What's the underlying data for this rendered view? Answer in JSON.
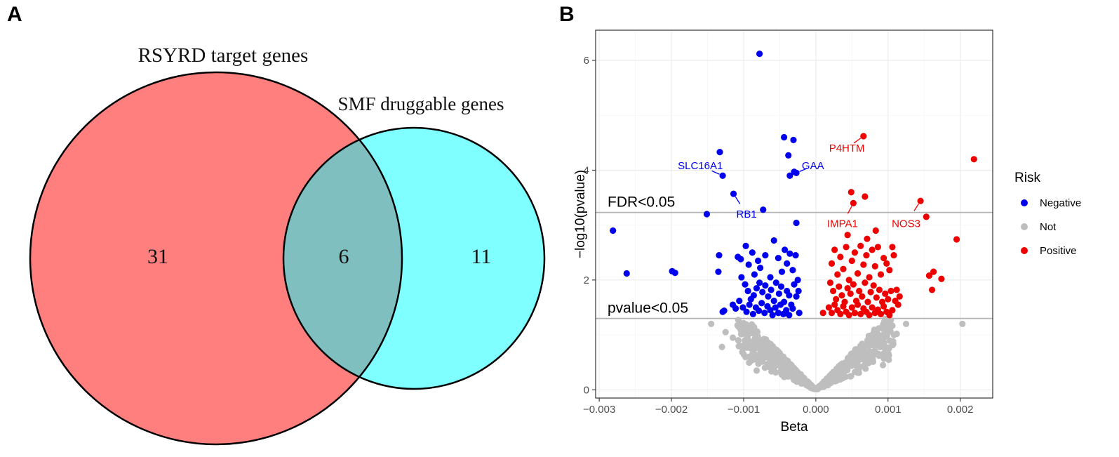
{
  "panels": {
    "a": "A",
    "b": "B"
  },
  "venn": {
    "set1_label": "RSYRD target genes",
    "set2_label": "SMF druggable genes",
    "set1_only": "31",
    "intersection": "6",
    "set2_only": "11",
    "colors": {
      "set1": "#ff7f7f",
      "set2": "#7fffff",
      "overlap": "#7fbfbf"
    }
  },
  "chart_data": {
    "type": "scatter",
    "title": "",
    "xlabel": "Beta",
    "ylabel": "−log10(pvalue)",
    "xlim": [
      -0.00305,
      0.00245
    ],
    "ylim": [
      -0.15,
      6.55
    ],
    "xticks": [
      -0.003,
      -0.002,
      -0.001,
      0.0,
      0.001,
      0.002
    ],
    "xtick_labels": [
      "−0.003",
      "−0.002",
      "−0.001",
      "0.000",
      "0.001",
      "0.002"
    ],
    "yticks": [
      0,
      2,
      4,
      6
    ],
    "ytick_labels": [
      "0",
      "2",
      "4",
      "6"
    ],
    "thresholds": [
      {
        "name": "FDR",
        "label": "FDR<0.05",
        "y": 3.23
      },
      {
        "name": "pvalue",
        "label": "pvalue<0.05",
        "y": 1.3
      }
    ],
    "legend": {
      "title": "Risk",
      "position": "right",
      "entries": [
        {
          "label": "Negative",
          "color": "#0000ee"
        },
        {
          "label": "Not",
          "color": "#bebebe"
        },
        {
          "label": "Positive",
          "color": "#ee0000"
        }
      ]
    },
    "series": [
      {
        "name": "Negative",
        "color": "#0000ee",
        "points": [
          [
            -0.00078,
            6.12
          ],
          [
            -0.00044,
            4.6
          ],
          [
            -0.00031,
            4.55
          ],
          [
            -0.00038,
            4.27
          ],
          [
            -0.00133,
            4.33
          ],
          [
            -0.00129,
            3.9
          ],
          [
            -0.00027,
            3.95
          ],
          [
            -0.00036,
            3.9
          ],
          [
            -0.0003,
            3.97
          ],
          [
            -0.00114,
            3.57
          ],
          [
            -0.00073,
            3.28
          ],
          [
            -0.00151,
            3.2
          ],
          [
            -0.00027,
            3.04
          ],
          [
            -0.00281,
            2.9
          ],
          [
            -0.00262,
            2.12
          ],
          [
            -0.00199,
            2.16
          ],
          [
            -0.00195,
            2.13
          ],
          [
            -0.00134,
            2.45
          ],
          [
            -0.00135,
            2.15
          ],
          [
            -0.00108,
            2.42
          ],
          [
            -0.00104,
            2.38
          ],
          [
            -0.00097,
            2.62
          ],
          [
            -0.00093,
            2.28
          ],
          [
            -0.00088,
            2.5
          ],
          [
            -0.00085,
            2.1
          ],
          [
            -0.0008,
            2.35
          ],
          [
            -0.00077,
            2.22
          ],
          [
            -0.0007,
            2.45
          ],
          [
            -0.00063,
            2.05
          ],
          [
            -0.00058,
            2.72
          ],
          [
            -0.00052,
            2.4
          ],
          [
            -0.00047,
            2.15
          ],
          [
            -0.00043,
            2.55
          ],
          [
            -0.0004,
            2.3
          ],
          [
            -0.00036,
            2.48
          ],
          [
            -0.00032,
            2.18
          ],
          [
            -0.00028,
            2.45
          ],
          [
            -0.00025,
            2.0
          ],
          [
            -0.00103,
            2.05
          ],
          [
            -0.00098,
            1.92
          ],
          [
            -0.00094,
            1.8
          ],
          [
            -0.0009,
            1.65
          ],
          [
            -0.00086,
            1.72
          ],
          [
            -0.00082,
            1.85
          ],
          [
            -0.00078,
            1.95
          ],
          [
            -0.00074,
            1.78
          ],
          [
            -0.0007,
            1.9
          ],
          [
            -0.00066,
            1.7
          ],
          [
            -0.00062,
            1.82
          ],
          [
            -0.00058,
            1.62
          ],
          [
            -0.00055,
            1.95
          ],
          [
            -0.00051,
            1.75
          ],
          [
            -0.00048,
            1.88
          ],
          [
            -0.00044,
            1.6
          ],
          [
            -0.0004,
            1.8
          ],
          [
            -0.00037,
            1.72
          ],
          [
            -0.00034,
            1.55
          ],
          [
            -0.0003,
            1.92
          ],
          [
            -0.00027,
            1.7
          ],
          [
            -0.00024,
            1.8
          ],
          [
            -0.00115,
            1.55
          ],
          [
            -0.00111,
            1.48
          ],
          [
            -0.00106,
            1.62
          ],
          [
            -0.00101,
            1.5
          ],
          [
            -0.00096,
            1.42
          ],
          [
            -0.00092,
            1.55
          ],
          [
            -0.00087,
            1.38
          ],
          [
            -0.00083,
            1.5
          ],
          [
            -0.00079,
            1.44
          ],
          [
            -0.00075,
            1.58
          ],
          [
            -0.00071,
            1.4
          ],
          [
            -0.00067,
            1.52
          ],
          [
            -0.00063,
            1.45
          ],
          [
            -0.0006,
            1.36
          ],
          [
            -0.00056,
            1.5
          ],
          [
            -0.00052,
            1.4
          ],
          [
            -0.00049,
            1.55
          ],
          [
            -0.00045,
            1.38
          ],
          [
            -0.00041,
            1.45
          ],
          [
            -0.00037,
            1.36
          ],
          [
            -0.00032,
            1.48
          ],
          [
            -0.00129,
            1.42
          ],
          [
            -0.00127,
            1.44
          ],
          [
            -0.00023,
            1.4
          ]
        ]
      },
      {
        "name": "Positive",
        "color": "#ee0000",
        "points": [
          [
            0.00066,
            4.62
          ],
          [
            0.00219,
            4.2
          ],
          [
            0.00049,
            3.6
          ],
          [
            0.00068,
            3.52
          ],
          [
            0.00052,
            3.4
          ],
          [
            0.00145,
            3.44
          ],
          [
            0.00153,
            3.15
          ],
          [
            0.00083,
            2.9
          ],
          [
            0.00044,
            2.82
          ],
          [
            0.00071,
            2.75
          ],
          [
            0.00195,
            2.74
          ],
          [
            0.00106,
            2.6
          ],
          [
            0.00163,
            2.15
          ],
          [
            0.00174,
            2.02
          ],
          [
            0.00157,
            2.08
          ],
          [
            0.00161,
            1.82
          ],
          [
            0.00022,
            2.3
          ],
          [
            0.00026,
            2.55
          ],
          [
            0.0003,
            2.1
          ],
          [
            0.00034,
            2.42
          ],
          [
            0.00038,
            2.2
          ],
          [
            0.00042,
            2.6
          ],
          [
            0.00046,
            2.0
          ],
          [
            0.0005,
            2.35
          ],
          [
            0.00054,
            2.5
          ],
          [
            0.00058,
            2.12
          ],
          [
            0.00062,
            2.62
          ],
          [
            0.00066,
            2.28
          ],
          [
            0.0007,
            2.45
          ],
          [
            0.00074,
            2.05
          ],
          [
            0.00078,
            2.55
          ],
          [
            0.00082,
            2.25
          ],
          [
            0.00086,
            2.6
          ],
          [
            0.0009,
            2.1
          ],
          [
            0.00094,
            2.4
          ],
          [
            0.00098,
            2.3
          ],
          [
            0.00102,
            2.18
          ],
          [
            0.00108,
            2.45
          ],
          [
            0.00112,
            1.82
          ],
          [
            0.00116,
            1.7
          ],
          [
            0.0002,
            1.95
          ],
          [
            0.00024,
            1.8
          ],
          [
            0.00028,
            1.65
          ],
          [
            0.00032,
            1.88
          ],
          [
            0.00036,
            1.72
          ],
          [
            0.0004,
            1.6
          ],
          [
            0.00044,
            1.85
          ],
          [
            0.00048,
            1.75
          ],
          [
            0.00052,
            1.92
          ],
          [
            0.00056,
            1.62
          ],
          [
            0.0006,
            1.8
          ],
          [
            0.00064,
            1.7
          ],
          [
            0.00068,
            1.95
          ],
          [
            0.00072,
            1.6
          ],
          [
            0.00076,
            1.78
          ],
          [
            0.0008,
            1.9
          ],
          [
            0.00084,
            1.68
          ],
          [
            0.00088,
            1.82
          ],
          [
            0.00092,
            1.6
          ],
          [
            0.00096,
            1.75
          ],
          [
            0.001,
            1.65
          ],
          [
            0.00104,
            1.8
          ],
          [
            0.0011,
            1.62
          ],
          [
            0.00114,
            1.55
          ],
          [
            0.00018,
            1.5
          ],
          [
            0.00022,
            1.4
          ],
          [
            0.00026,
            1.55
          ],
          [
            0.0003,
            1.45
          ],
          [
            0.00034,
            1.38
          ],
          [
            0.00038,
            1.52
          ],
          [
            0.00042,
            1.42
          ],
          [
            0.00046,
            1.36
          ],
          [
            0.0005,
            1.5
          ],
          [
            0.00054,
            1.4
          ],
          [
            0.00058,
            1.55
          ],
          [
            0.00062,
            1.38
          ],
          [
            0.00066,
            1.48
          ],
          [
            0.0007,
            1.42
          ],
          [
            0.00074,
            1.36
          ],
          [
            0.00078,
            1.5
          ],
          [
            0.00082,
            1.4
          ],
          [
            0.00086,
            1.46
          ],
          [
            0.0009,
            1.38
          ],
          [
            0.00094,
            1.52
          ],
          [
            0.00098,
            1.42
          ],
          [
            0.00102,
            1.36
          ],
          [
            0.00106,
            1.45
          ],
          [
            0.0001,
            1.4
          ]
        ]
      }
    ],
    "not_significant": {
      "name": "Not",
      "color": "#bebebe",
      "count": 650,
      "note": "non-significant cloud: points below pvalue<0.05 threshold, V-shaped around beta = 0"
    },
    "labeled_points": [
      {
        "gene": "SLC16A1",
        "x": -0.00129,
        "y": 3.9,
        "label_x": -0.0016,
        "label_y": 4.08,
        "color": "#0000ee"
      },
      {
        "gene": "GAA",
        "x": -0.00027,
        "y": 3.95,
        "label_x": -4e-05,
        "label_y": 4.08,
        "color": "#0000ee"
      },
      {
        "gene": "RB1",
        "x": -0.00114,
        "y": 3.57,
        "label_x": -0.00096,
        "label_y": 3.2,
        "color": "#0000ee"
      },
      {
        "gene": "P4HTM",
        "x": 0.00066,
        "y": 4.62,
        "label_x": 0.00043,
        "label_y": 4.4,
        "color": "#ee0000"
      },
      {
        "gene": "IMPA1",
        "x": 0.00052,
        "y": 3.4,
        "label_x": 0.00037,
        "label_y": 3.03,
        "color": "#ee0000"
      },
      {
        "gene": "NOS3",
        "x": 0.00145,
        "y": 3.44,
        "label_x": 0.00125,
        "label_y": 3.03,
        "color": "#ee0000"
      }
    ]
  }
}
